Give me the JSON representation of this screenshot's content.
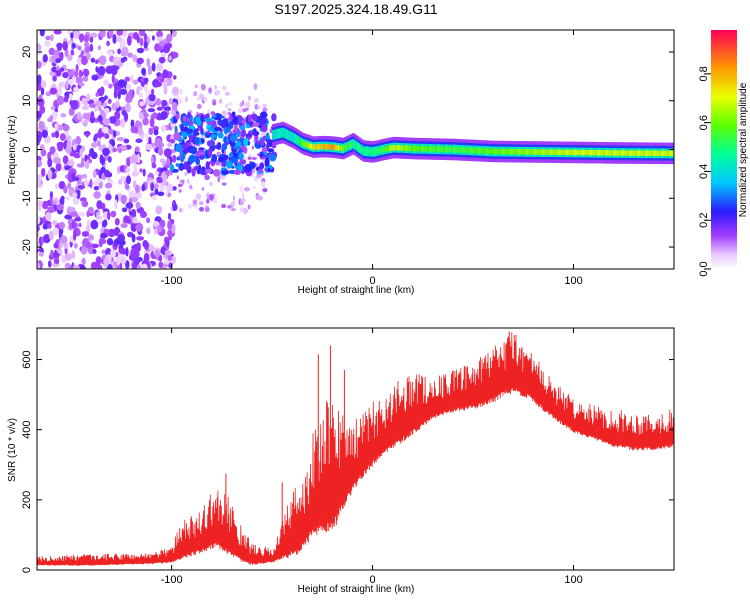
{
  "title": "S197.2025.324.18.49.G11",
  "colors": {
    "snr_line": "#ee2222",
    "axis": "#000000",
    "background": "#ffffff"
  },
  "chart_data": [
    {
      "type": "heatmap",
      "name": "spectrogram",
      "xlabel": "Height of straight line (km)",
      "ylabel": "Frequency (Hz)",
      "xlim": [
        -167,
        150
      ],
      "ylim": [
        -24.5,
        24.5
      ],
      "xticks": [
        -100,
        0,
        100
      ],
      "xtick_labels": [
        "-100",
        "0",
        "100"
      ],
      "yticks": [
        -20,
        -10,
        0,
        10,
        20
      ],
      "ytick_labels": [
        "-20",
        "-10",
        "0",
        "10",
        "20"
      ],
      "colorbar": {
        "label": "Normalized spectral amplitude",
        "range": [
          0,
          0.98
        ],
        "ticks": [
          0.0,
          0.2,
          0.4,
          0.6,
          0.8
        ],
        "tick_labels": [
          "0.0",
          "0.2",
          "0.4",
          "0.6",
          "0.8"
        ]
      },
      "ridge": {
        "x": [
          -50,
          -45,
          -40,
          -35,
          -30,
          -25,
          -20,
          -15,
          -10,
          -5,
          0,
          5,
          10,
          20,
          40,
          60,
          80,
          100,
          120,
          150
        ],
        "y": [
          3.0,
          3.5,
          2.5,
          1.2,
          0.5,
          0.6,
          0.5,
          0.2,
          1.2,
          -0.3,
          -0.5,
          0.0,
          0.4,
          0.2,
          0.0,
          -0.4,
          -0.5,
          -0.6,
          -0.7,
          -0.8
        ],
        "amplitude": [
          0.4,
          0.45,
          0.4,
          0.6,
          0.75,
          0.8,
          0.85,
          0.6,
          0.5,
          0.5,
          0.5,
          0.55,
          0.7,
          0.6,
          0.55,
          0.6,
          0.65,
          0.7,
          0.7,
          0.7
        ]
      }
    },
    {
      "type": "line",
      "name": "snr",
      "xlabel": "Height of straight line (km)",
      "ylabel": "SNR (10 * v/v)",
      "xlim": [
        -167,
        150
      ],
      "ylim": [
        0,
        690
      ],
      "xticks": [
        -100,
        0,
        100
      ],
      "xtick_labels": [
        "-100",
        "0",
        "100"
      ],
      "yticks": [
        0,
        200,
        400,
        600
      ],
      "ytick_labels": [
        "0",
        "200",
        "400",
        "600"
      ],
      "envelope": {
        "x": [
          -167,
          -140,
          -110,
          -100,
          -95,
          -85,
          -78,
          -70,
          -65,
          -60,
          -50,
          -45,
          -38,
          -33,
          -30,
          -26,
          -22,
          -18,
          -14,
          -10,
          -5,
          0,
          5,
          10,
          15,
          20,
          25,
          30,
          40,
          50,
          60,
          65,
          70,
          75,
          80,
          90,
          100,
          110,
          120,
          130,
          140,
          150
        ],
        "base": [
          15,
          15,
          20,
          25,
          40,
          60,
          80,
          50,
          30,
          20,
          25,
          40,
          60,
          90,
          120,
          130,
          140,
          160,
          200,
          240,
          280,
          310,
          340,
          360,
          380,
          400,
          420,
          440,
          460,
          470,
          490,
          510,
          520,
          510,
          490,
          440,
          400,
          380,
          360,
          350,
          350,
          360
        ],
        "peak": [
          40,
          45,
          50,
          70,
          140,
          180,
          240,
          200,
          120,
          80,
          60,
          150,
          250,
          300,
          400,
          420,
          500,
          480,
          470,
          420,
          450,
          480,
          500,
          520,
          560,
          580,
          560,
          550,
          570,
          590,
          640,
          670,
          690,
          660,
          620,
          540,
          490,
          470,
          460,
          450,
          450,
          460
        ]
      },
      "spikes": [
        {
          "x": -73,
          "y": 275
        },
        {
          "x": -45,
          "y": 250
        },
        {
          "x": -27,
          "y": 615
        },
        {
          "x": -21,
          "y": 640
        },
        {
          "x": -14,
          "y": 570
        },
        {
          "x": 68,
          "y": 680
        }
      ]
    }
  ]
}
